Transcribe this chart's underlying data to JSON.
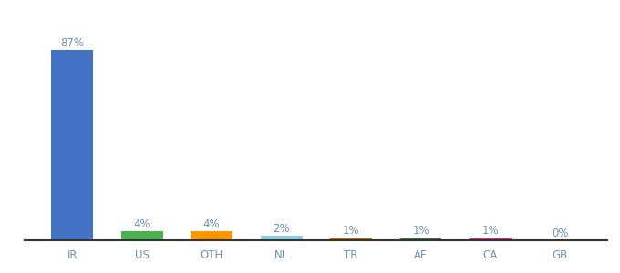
{
  "categories": [
    "IR",
    "US",
    "OTH",
    "NL",
    "TR",
    "AF",
    "CA",
    "GB"
  ],
  "values": [
    87,
    4,
    4,
    2,
    1,
    1,
    1,
    0
  ],
  "labels": [
    "87%",
    "4%",
    "4%",
    "2%",
    "1%",
    "1%",
    "1%",
    "0%"
  ],
  "bar_colors": [
    "#4472C4",
    "#4CAF50",
    "#FF9800",
    "#87CEEB",
    "#CD6600",
    "#2E7D32",
    "#E91E8C",
    "#9E9E9E"
  ],
  "background_color": "#ffffff",
  "label_fontsize": 8.5,
  "tick_fontsize": 8.5,
  "tick_color": "#7090B0",
  "label_color": "#7090B0",
  "ylim": [
    0,
    100
  ],
  "bar_width": 0.6
}
